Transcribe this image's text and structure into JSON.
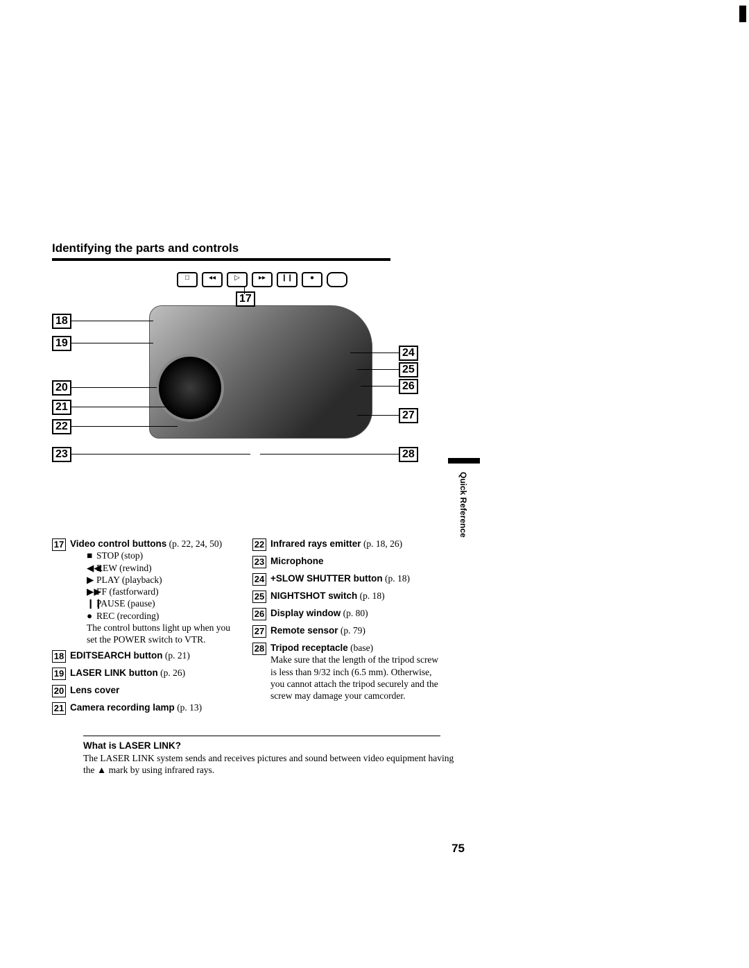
{
  "section_title": "Identifying the parts and controls",
  "side_label": "Quick Reference",
  "page_number": "75",
  "callouts": {
    "c17": "17",
    "c18": "18",
    "c19": "19",
    "c20": "20",
    "c21": "21",
    "c22": "22",
    "c23": "23",
    "c24": "24",
    "c25": "25",
    "c26": "26",
    "c27": "27",
    "c28": "28"
  },
  "button_glyphs": [
    "□",
    "◂◂",
    "▷",
    "▸▸",
    "❙❙",
    "●",
    ""
  ],
  "left_items": [
    {
      "num": "17",
      "title": "Video control buttons",
      "note": " (p. 22, 24, 50)",
      "subs": [
        {
          "sym": "■",
          "text": "STOP (stop)"
        },
        {
          "sym": "◀◀",
          "text": "REW (rewind)"
        },
        {
          "sym": "▶",
          "text": "PLAY (playback)"
        },
        {
          "sym": "▶▶",
          "text": "FF (fastforward)"
        },
        {
          "sym": "❙❙",
          "text": "PAUSE (pause)"
        },
        {
          "sym": "●",
          "text": "REC (recording)"
        }
      ],
      "tail": "The control buttons light up when you set the POWER switch to VTR."
    },
    {
      "num": "18",
      "title": "EDITSEARCH button",
      "note": " (p. 21)"
    },
    {
      "num": "19",
      "title": "LASER LINK button",
      "note": " (p. 26)"
    },
    {
      "num": "20",
      "title": "Lens cover",
      "note": ""
    },
    {
      "num": "21",
      "title": "Camera recording lamp",
      "note": " (p. 13)"
    }
  ],
  "right_items": [
    {
      "num": "22",
      "title": "Infrared rays emitter",
      "note": " (p. 18, 26)"
    },
    {
      "num": "23",
      "title": "Microphone",
      "note": ""
    },
    {
      "num": "24",
      "title": "+SLOW SHUTTER button",
      "note": " (p. 18)"
    },
    {
      "num": "25",
      "title": "NIGHTSHOT switch",
      "note": " (p. 18)"
    },
    {
      "num": "26",
      "title": "Display window",
      "note": " (p. 80)"
    },
    {
      "num": "27",
      "title": "Remote sensor",
      "note": " (p. 79)"
    },
    {
      "num": "28",
      "title": "Tripod receptacle",
      "note": " (base)",
      "tail": "Make sure that the length of the tripod screw is less than 9/32 inch (6.5 mm). Otherwise, you cannot attach the tripod securely and the screw may damage your camcorder."
    }
  ],
  "footnote": {
    "title": "What is LASER LINK?",
    "body": "The LASER LINK system sends and receives pictures and sound between video equipment having the ▲ mark by using infrared rays."
  }
}
